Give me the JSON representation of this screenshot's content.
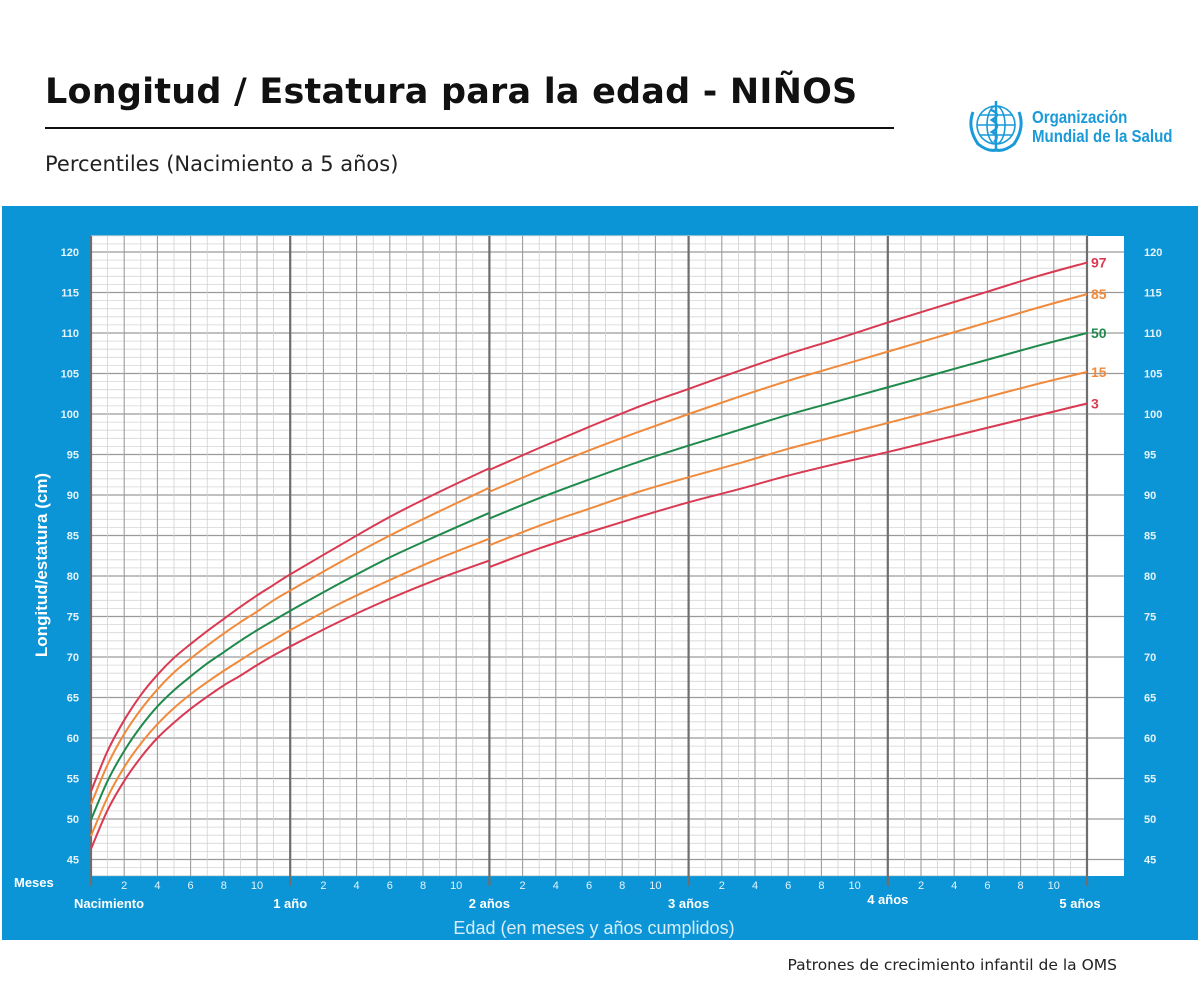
{
  "header": {
    "title": "Longitud / Estatura para la edad - NIÑOS",
    "subtitle": "Percentiles (Nacimiento a 5 años)",
    "logo": {
      "line1": "Organización",
      "line2": "Mundial de la Salud",
      "color": "#1a9ad9"
    }
  },
  "footer": {
    "source": "Patrones de crecimiento infantil de la OMS"
  },
  "colors": {
    "panel": "#0b95d6",
    "p97": "#d93a52",
    "p85": "#f08a3c",
    "p50": "#1f8a4c",
    "p15": "#f08a3c",
    "p3": "#d93a52"
  },
  "chart_data": {
    "type": "line",
    "title": "Longitud / Estatura para la edad - NIÑOS",
    "subtitle": "Percentiles (Nacimiento a 5 años)",
    "xlabel": "Edad (en meses y años cumplidos)",
    "ylabel": "Longitud/estatura (cm)",
    "x_unit_label": "Meses",
    "xlim": [
      0,
      60
    ],
    "ylim": [
      43,
      122
    ],
    "grid": true,
    "y_ticks": [
      45,
      50,
      55,
      60,
      65,
      70,
      75,
      80,
      85,
      90,
      95,
      100,
      105,
      110,
      115,
      120
    ],
    "month_tick_labels": [
      "2",
      "4",
      "6",
      "8",
      "10"
    ],
    "year_tick_labels": [
      "Nacimiento",
      "1 año",
      "2 años",
      "3 años",
      "4 años",
      "5 años"
    ],
    "x_length": [
      0,
      1,
      2,
      3,
      4,
      5,
      6,
      7,
      8,
      9,
      10,
      11,
      12,
      15,
      18,
      21,
      24
    ],
    "x_height": [
      24,
      27,
      30,
      33,
      36,
      39,
      42,
      45,
      48,
      51,
      54,
      57,
      60
    ],
    "series": [
      {
        "name": "97",
        "color": "#d93a52",
        "length": [
          53.4,
          58.4,
          62.2,
          65.3,
          67.8,
          69.9,
          71.6,
          73.2,
          74.7,
          76.2,
          77.6,
          78.9,
          80.2,
          83.8,
          87.3,
          90.4,
          93.3
        ],
        "height": [
          93.1,
          95.8,
          98.4,
          100.9,
          103.1,
          105.3,
          107.4,
          109.3,
          111.3,
          113.2,
          115.1,
          117.0,
          118.7
        ]
      },
      {
        "name": "85",
        "color": "#f08a3c",
        "length": [
          51.8,
          56.7,
          60.5,
          63.5,
          66.0,
          68.1,
          69.8,
          71.4,
          72.9,
          74.3,
          75.6,
          77.0,
          78.2,
          81.7,
          85.0,
          88.0,
          90.9
        ],
        "height": [
          90.4,
          93.0,
          95.5,
          97.8,
          100.0,
          102.1,
          104.1,
          105.9,
          107.7,
          109.5,
          111.3,
          113.1,
          114.8
        ]
      },
      {
        "name": "50",
        "color": "#1f8a4c",
        "length": [
          49.9,
          54.7,
          58.4,
          61.4,
          63.9,
          65.9,
          67.6,
          69.2,
          70.6,
          72.0,
          73.3,
          74.5,
          75.7,
          79.1,
          82.3,
          85.1,
          87.8
        ],
        "height": [
          87.1,
          89.6,
          91.9,
          94.1,
          96.1,
          98.0,
          99.9,
          101.6,
          103.3,
          105.0,
          106.7,
          108.4,
          110.0
        ]
      },
      {
        "name": "15",
        "color": "#f08a3c",
        "length": [
          47.9,
          52.7,
          56.4,
          59.3,
          61.7,
          63.7,
          65.4,
          66.9,
          68.3,
          69.6,
          70.9,
          72.1,
          73.3,
          76.6,
          79.5,
          82.2,
          84.6
        ],
        "height": [
          83.8,
          86.2,
          88.3,
          90.4,
          92.2,
          93.9,
          95.7,
          97.3,
          98.9,
          100.5,
          102.1,
          103.7,
          105.2
        ]
      },
      {
        "name": "3",
        "color": "#d93a52",
        "length": [
          46.3,
          51.1,
          54.7,
          57.6,
          60.0,
          61.9,
          63.6,
          65.1,
          66.5,
          67.7,
          69.0,
          70.2,
          71.3,
          74.4,
          77.2,
          79.7,
          81.9
        ],
        "height": [
          81.1,
          83.4,
          85.4,
          87.3,
          89.1,
          90.7,
          92.4,
          93.9,
          95.3,
          96.8,
          98.3,
          99.8,
          101.3
        ]
      }
    ]
  }
}
